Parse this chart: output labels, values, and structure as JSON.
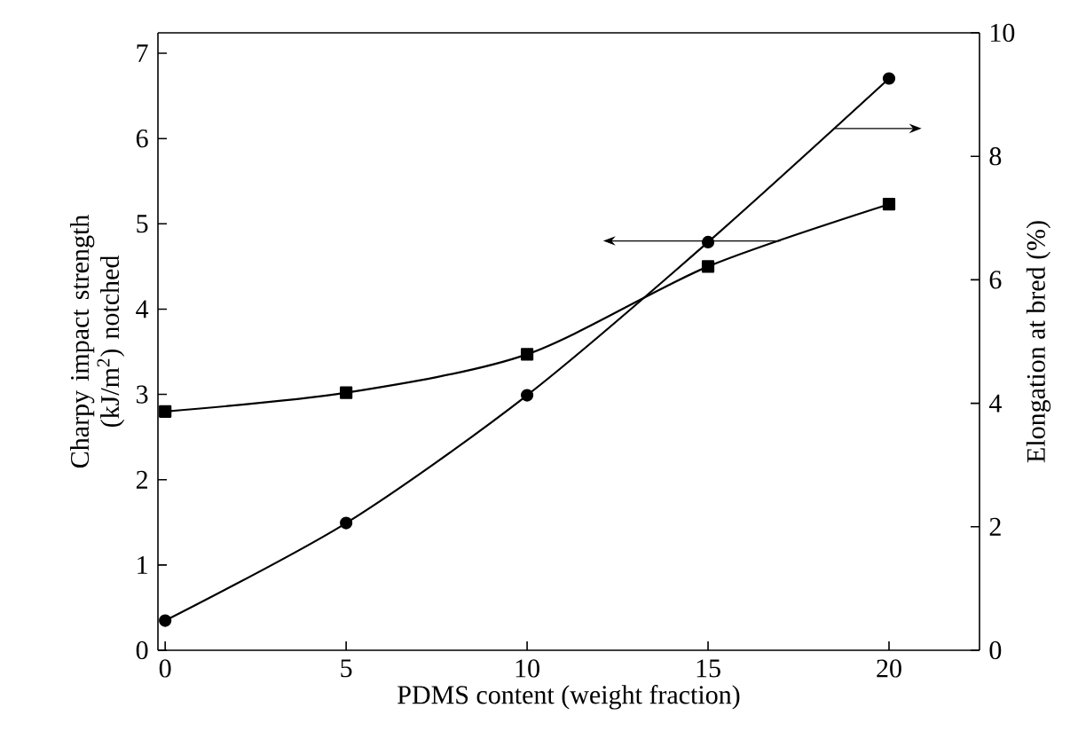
{
  "chart_data": {
    "type": "line",
    "xlabel": "PDMS content (weight fraction)",
    "ylabel": "Charpy impact strength (kJ/m$^{2}$) notched",
    "y2label": "Elongation at bred (%)",
    "x": [
      0,
      5,
      10,
      15,
      20
    ],
    "series": [
      {
        "color": "#000000",
        "marker": "square",
        "values": [
          2.8,
          3.02,
          3.47,
          4.5,
          5.23
        ]
      },
      {
        "color": "#000000",
        "marker": "circle",
        "axis": "y2",
        "values": [
          0.48,
          2.06,
          4.13,
          6.61,
          9.26
        ]
      }
    ],
    "xlim": [
      -0.2,
      22.5
    ],
    "xticks": [
      0,
      5,
      10,
      15,
      20
    ],
    "ylim": [
      0,
      7.24
    ],
    "yticks": [
      0,
      1,
      2,
      3,
      4,
      5,
      6,
      7
    ],
    "y2lim": [
      0,
      10
    ],
    "y2ticks": [
      0,
      2,
      4,
      6,
      8,
      10
    ]
  }
}
